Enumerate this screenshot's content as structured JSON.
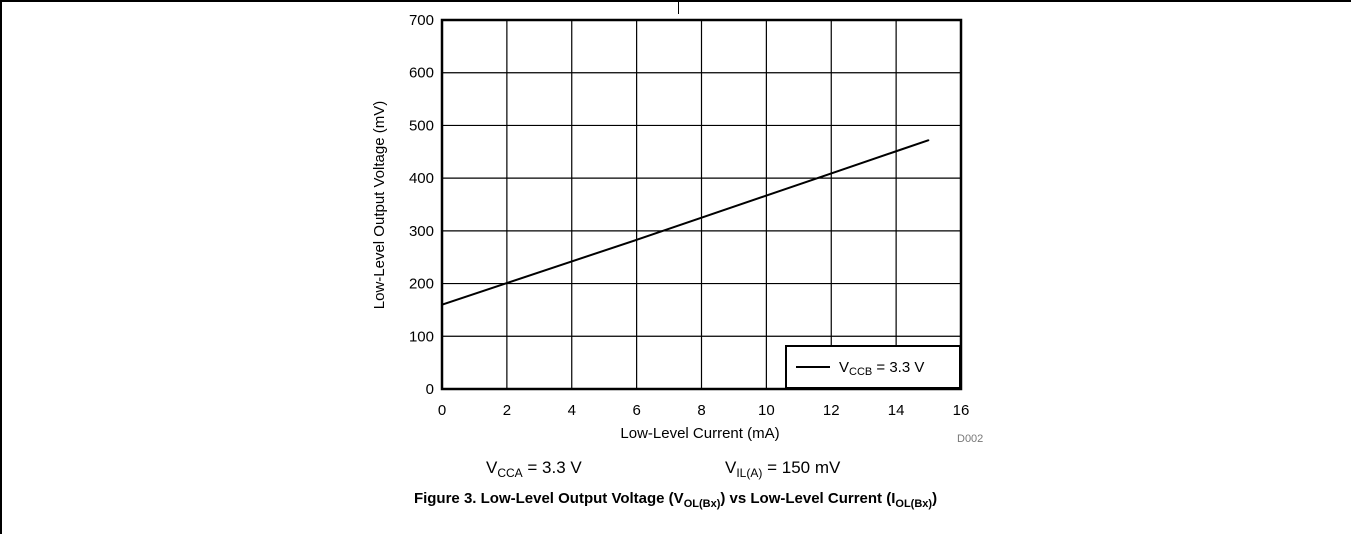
{
  "chart_data": {
    "type": "line",
    "xlabel": "Low-Level Current (mA)",
    "ylabel": "Low-Level Output Voltage (mV)",
    "xlim": [
      0,
      16
    ],
    "ylim": [
      0,
      700
    ],
    "x_ticks": [
      "0",
      "2",
      "4",
      "6",
      "8",
      "10",
      "12",
      "14",
      "16"
    ],
    "y_ticks": [
      "0",
      "100",
      "200",
      "300",
      "400",
      "500",
      "600",
      "700"
    ],
    "grid": true,
    "legend_position": "bottom-right",
    "series": [
      {
        "name": "V_CCB = 3.3 V",
        "x": [
          0,
          2,
          4,
          6,
          8,
          10,
          12,
          14,
          15
        ],
        "y": [
          160,
          201,
          242,
          283,
          325,
          367,
          409,
          451,
          472
        ],
        "color": "#000000"
      }
    ]
  },
  "legend": {
    "label_main": "V",
    "label_sub": "CCB",
    "label_rest": " = 3.3 V"
  },
  "conditions": {
    "vcca_main": "V",
    "vcca_sub": "CCA",
    "vcca_rest": " = 3.3 V",
    "vil_main": "V",
    "vil_sub": "IL(A)",
    "vil_rest": " = 150 mV"
  },
  "figure_id": "D002",
  "caption": {
    "part1": "Figure 3. Low-Level Output Voltage (V",
    "sub1": "OL(Bx)",
    "part2": ") vs Low-Level Current (I",
    "sub2": "OL(Bx)",
    "part3": ")"
  }
}
